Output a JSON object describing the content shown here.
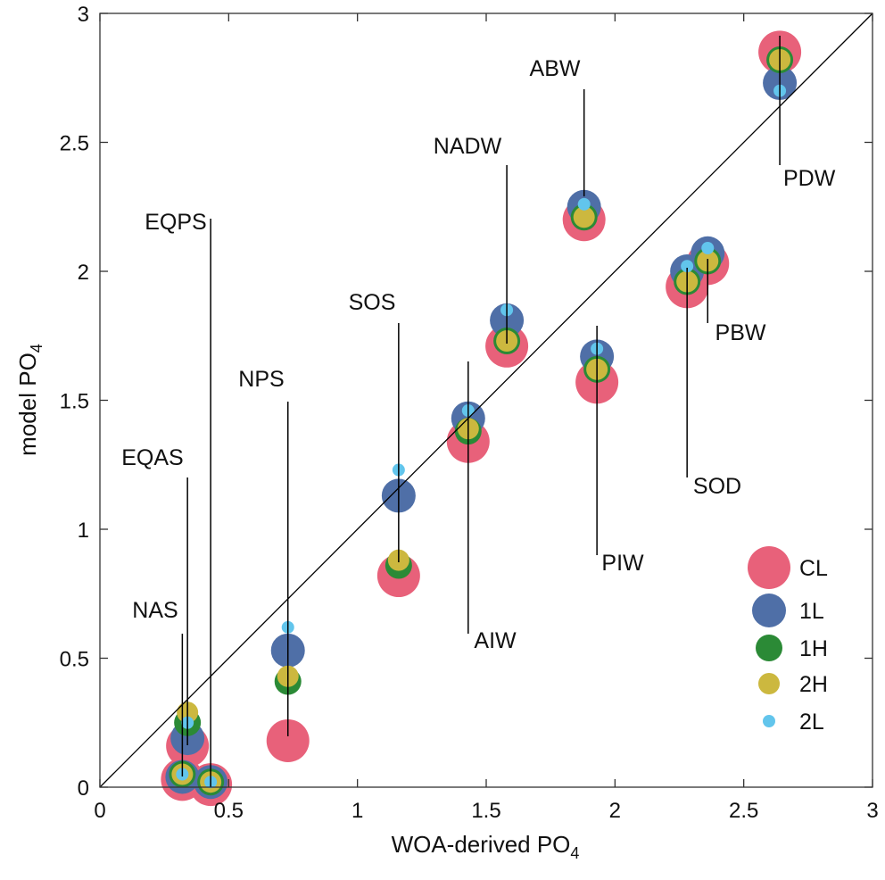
{
  "chart_data": {
    "type": "scatter",
    "title": "",
    "xlabel": "WOA-derived PO",
    "xlabel_sub": "4",
    "ylabel": "model PO",
    "ylabel_sub": "4",
    "xlim": [
      0,
      3
    ],
    "ylim": [
      0,
      3
    ],
    "xticks": [
      "0",
      "0.5",
      "1",
      "1.5",
      "2",
      "2.5",
      "3"
    ],
    "yticks": [
      "0",
      "0.5",
      "1",
      "1.5",
      "2",
      "2.5",
      "3"
    ],
    "grid": false,
    "legend_placement": "bottom-right",
    "reference_line": "1:1",
    "series": [
      {
        "name": "CL",
        "color": "#e8617a"
      },
      {
        "name": "1L",
        "color": "#4f6fa7"
      },
      {
        "name": "1H",
        "color": "#2b8a36"
      },
      {
        "name": "2H",
        "color": "#ccb83f"
      },
      {
        "name": "2L",
        "color": "#62c5ec"
      }
    ],
    "points": [
      {
        "label": "PDW",
        "x": 2.64,
        "y": {
          "CL": 2.85,
          "1L": 2.73,
          "1H": 2.82,
          "2H": 2.82,
          "2L": 2.7
        }
      },
      {
        "label": "ABW",
        "x": 1.88,
        "y": {
          "CL": 2.2,
          "1L": 2.25,
          "1H": 2.21,
          "2H": 2.21,
          "2L": 2.26
        }
      },
      {
        "label": "PBW",
        "x": 2.36,
        "y": {
          "CL": 2.03,
          "1L": 2.07,
          "1H": 2.04,
          "2H": 2.04,
          "2L": 2.09
        }
      },
      {
        "label": "SOD",
        "x": 2.28,
        "y": {
          "CL": 1.94,
          "1L": 2.0,
          "1H": 1.96,
          "2H": 1.96,
          "2L": 2.02
        }
      },
      {
        "label": "NADW",
        "x": 1.58,
        "y": {
          "CL": 1.71,
          "1L": 1.81,
          "1H": 1.73,
          "2H": 1.73,
          "2L": 1.85
        }
      },
      {
        "label": "PIW",
        "x": 1.93,
        "y": {
          "CL": 1.57,
          "1L": 1.67,
          "1H": 1.62,
          "2H": 1.62,
          "2L": 1.7
        }
      },
      {
        "label": "AIW",
        "x": 1.43,
        "y": {
          "CL": 1.34,
          "1L": 1.43,
          "1H": 1.38,
          "2H": 1.39,
          "2L": 1.46
        }
      },
      {
        "label": "SOS",
        "x": 1.16,
        "y": {
          "CL": 0.82,
          "1L": 1.13,
          "1H": 0.86,
          "2H": 0.88,
          "2L": 1.23
        }
      },
      {
        "label": "NPS",
        "x": 0.73,
        "y": {
          "CL": 0.18,
          "1L": 0.53,
          "1H": 0.41,
          "2H": 0.43,
          "2L": 0.62
        }
      },
      {
        "label": "EQAS",
        "x": 0.34,
        "y": {
          "CL": 0.16,
          "1L": 0.19,
          "1H": 0.25,
          "2H": 0.29,
          "2L": 0.25
        }
      },
      {
        "label": "NAS",
        "x": 0.32,
        "y": {
          "CL": 0.03,
          "1L": 0.04,
          "1H": 0.05,
          "2H": 0.05,
          "2L": 0.05
        }
      },
      {
        "label": "EQPS",
        "x": 0.43,
        "y": {
          "CL": 0.01,
          "1L": 0.02,
          "1H": 0.02,
          "2H": 0.02,
          "2L": 0.02
        }
      }
    ]
  }
}
